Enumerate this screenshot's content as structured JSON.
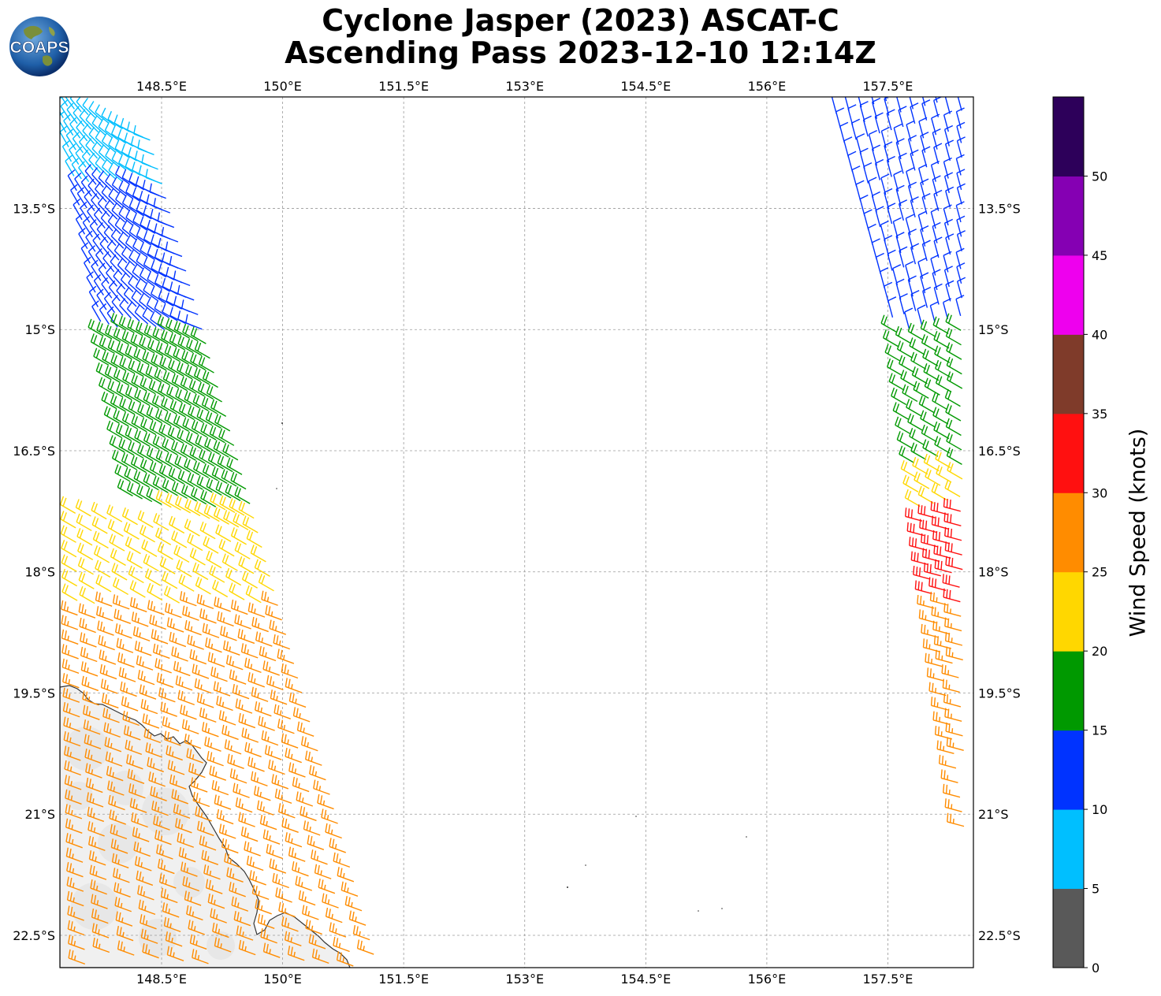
{
  "header": {
    "title_line1": "Cyclone Jasper (2023) ASCAT-C",
    "title_line2": "Ascending Pass 2023-12-10 12:14Z",
    "logo_text": "COAPS"
  },
  "map": {
    "lon_ticks": [
      "148.5°E",
      "150°E",
      "151.5°E",
      "153°E",
      "154.5°E",
      "156°E",
      "157.5°E"
    ],
    "lat_ticks": [
      "13.5°S",
      "15°S",
      "16.5°S",
      "18°S",
      "19.5°S",
      "21°S",
      "22.5°S"
    ],
    "lon_range": [
      147.24,
      158.56
    ],
    "lat_range": [
      -12.12,
      -22.9
    ],
    "land_color": "#f2f2f2",
    "coast_color": "#333333",
    "grid": true
  },
  "colorbar": {
    "label": "Wind Speed (knots)",
    "tick_labels": [
      "0",
      "5",
      "10",
      "15",
      "20",
      "25",
      "30",
      "35",
      "40",
      "45",
      "50"
    ],
    "colors": [
      "#595959",
      "#00bfff",
      "#0033ff",
      "#009900",
      "#ffd700",
      "#ff8c00",
      "#ff1010",
      "#7f3b2a",
      "#ee00ee",
      "#8500b3",
      "#2d005a"
    ]
  },
  "swaths": [
    {
      "name": "west",
      "lon_start": 147.24,
      "lon_end": 148.15,
      "lat_start": -12.15,
      "lat_end": -17.1
    },
    {
      "name": "west",
      "lon_start": 148.55,
      "lon_end": 151.3,
      "lat_start": -12.9,
      "lat_end": -22.9
    },
    {
      "name": "east",
      "lon_start": 156.8,
      "lon_end": 157.6,
      "lat_start": -12.1,
      "lat_end": -15.0
    },
    {
      "name": "east",
      "lon_start": 158.56,
      "lon_end": 158.56,
      "lat_start": -12.1,
      "lat_end": -21.2
    }
  ],
  "wind_bands": [
    {
      "lat_start": -12.15,
      "lat_end": -13.2,
      "speed_west": 8,
      "speed_east": 12
    },
    {
      "lat_start": -13.2,
      "lat_end": -15.0,
      "speed_west": 12,
      "speed_east": 12
    },
    {
      "lat_start": -15.0,
      "lat_end": -16.7,
      "speed_west": 18,
      "speed_east": 18
    },
    {
      "lat_start": -16.7,
      "lat_end": -17.2,
      "speed_west": 18,
      "speed_east": 22
    },
    {
      "lat_start": -17.2,
      "lat_end": -18.4,
      "speed_west": 22,
      "speed_east": 32
    },
    {
      "lat_start": -18.4,
      "lat_end": -22.9,
      "speed_west": 27,
      "speed_east": 27
    }
  ],
  "barb_legend_units": "knots"
}
